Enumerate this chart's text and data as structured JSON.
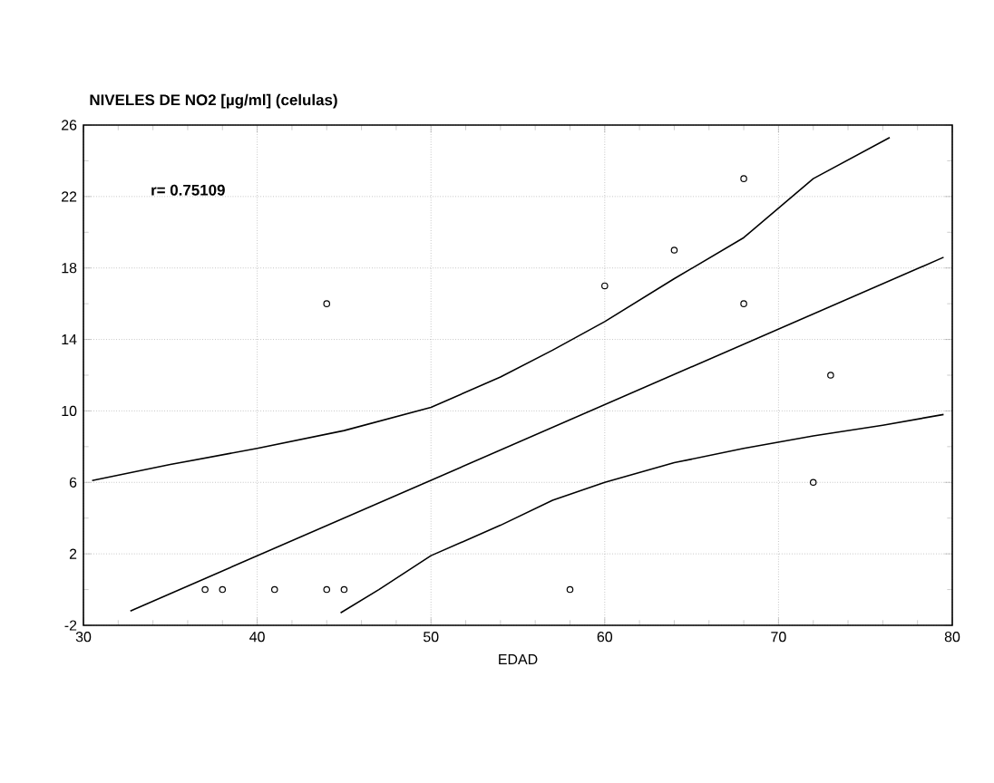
{
  "chart_data": {
    "type": "scatter",
    "title": "NIVELES DE NO2 [µg/ml] (celulas)",
    "xlabel": "EDAD",
    "annotations": [
      "r= 0.75109"
    ],
    "xlim": [
      30,
      80
    ],
    "ylim": [
      -2,
      26
    ],
    "xticks": [
      30,
      40,
      50,
      60,
      70,
      80
    ],
    "yticks": [
      -2,
      2,
      6,
      10,
      14,
      18,
      22,
      26
    ],
    "grid": true,
    "series": [
      {
        "color": "#000000",
        "marker": "circle",
        "x": [
          37,
          38,
          41,
          44,
          45,
          44,
          58,
          60,
          64,
          68,
          68,
          72,
          73
        ],
        "values": [
          0,
          0,
          0,
          0,
          0,
          16,
          0,
          17,
          19,
          23,
          16,
          6,
          12
        ]
      },
      {
        "type": "line",
        "color": "#000000",
        "line_style": "solid",
        "x": [
          32.7,
          79.5
        ],
        "values": [
          -1.2,
          18.6
        ]
      },
      {
        "type": "line",
        "color": "#000000",
        "line_style": "solid",
        "x": [
          30.5,
          35,
          40,
          45,
          50,
          54,
          57,
          60,
          64,
          68,
          72,
          76.4
        ],
        "values": [
          6.1,
          7.0,
          7.9,
          8.9,
          10.2,
          11.9,
          13.4,
          15.0,
          17.4,
          19.7,
          23.0,
          25.3
        ]
      },
      {
        "type": "line",
        "color": "#000000",
        "line_style": "solid",
        "x": [
          44.8,
          47,
          50,
          54,
          57,
          60,
          64,
          68,
          72,
          76,
          79.5
        ],
        "values": [
          -1.3,
          0,
          1.9,
          3.6,
          5.0,
          6.0,
          7.1,
          7.9,
          8.6,
          9.2,
          9.8
        ]
      }
    ]
  }
}
